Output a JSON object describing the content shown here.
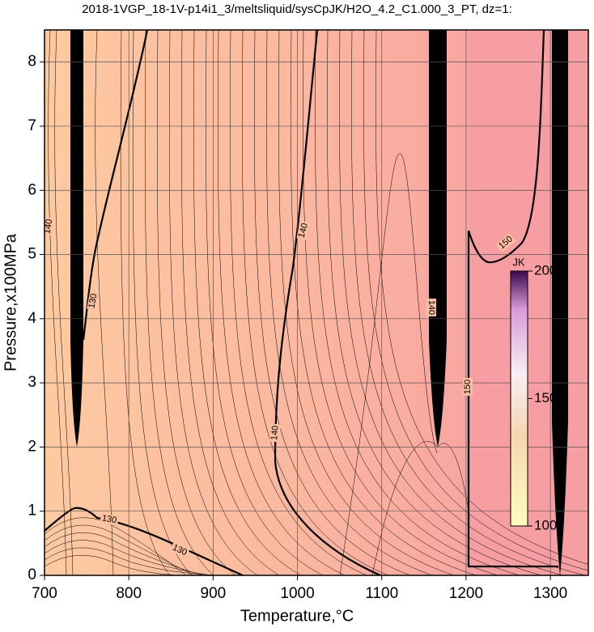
{
  "chart_data": {
    "type": "contour",
    "title": "2018-1VGP_18-1V-p14i1_3/meltsliquid/sysCpJK/H2O_4.2_C1.000_3_PT, dz=1:",
    "x_label": "Temperature,°C",
    "y_label": "Pressure,x100MPa",
    "xlim": [
      700,
      1345
    ],
    "ylim": [
      0,
      8.5
    ],
    "xticks": [
      700,
      800,
      900,
      1000,
      1100,
      1200,
      1300
    ],
    "yticks": [
      0,
      1,
      2,
      3,
      4,
      5,
      6,
      7,
      8
    ],
    "grid": true,
    "contour_labels": [
      130,
      130,
      130,
      140,
      140,
      140,
      140,
      150,
      150
    ],
    "colorbar": {
      "label": "JK",
      "lim": [
        100,
        200
      ],
      "ticks": [
        100,
        150,
        200
      ]
    }
  }
}
